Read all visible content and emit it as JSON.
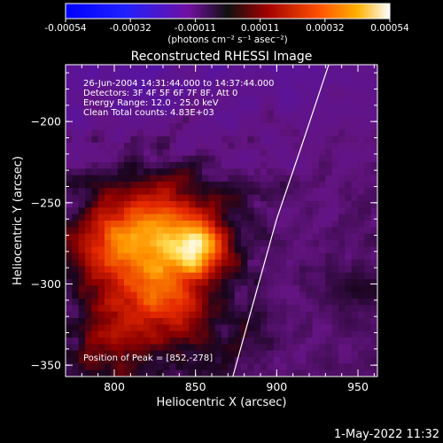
{
  "chart_data": {
    "type": "heatmap",
    "title": "Reconstructed RHESSI Image",
    "xlabel": "Heliocentric X (arcsec)",
    "ylabel": "Heliocentric Y (arcsec)",
    "xlim": [
      770,
      962
    ],
    "ylim": [
      -357,
      -165
    ],
    "x_ticks": [
      800,
      850,
      900,
      950
    ],
    "y_ticks": [
      -200,
      -250,
      -300,
      -350
    ],
    "colorbar": {
      "ticks": [
        "-0.00054",
        "-0.00032",
        "-0.00011",
        "0.00011",
        "0.00032",
        "0.00054"
      ],
      "label": "(photons cm⁻² s⁻¹ asec⁻²)",
      "range": [
        -0.00054,
        0.00054
      ]
    },
    "annotations": [
      "26-Jun-2004 14:31:44.000 to 14:37:44.000",
      "Detectors: 3F 4F 5F 6F 7F 8F, Att 0",
      "Energy Range: 12.0 - 25.0 keV",
      "Clean    Total counts: 4.83E+03"
    ],
    "peak_label": "Position of Peak = [852,-278]",
    "peak_position": [
      852,
      -278
    ],
    "peak_value": 0.00054,
    "sources": [
      {
        "x": 852,
        "y": -278,
        "sigma": 12,
        "amp": 0.00042
      },
      {
        "x": 830,
        "y": -262,
        "sigma": 20,
        "amp": 0.00025
      },
      {
        "x": 815,
        "y": -290,
        "sigma": 22,
        "amp": 0.00022
      },
      {
        "x": 835,
        "y": -315,
        "sigma": 18,
        "amp": 0.00018
      },
      {
        "x": 795,
        "y": -272,
        "sigma": 16,
        "amp": 0.00016
      },
      {
        "x": 800,
        "y": -335,
        "sigma": 16,
        "amp": 0.00012
      },
      {
        "x": 948,
        "y": -305,
        "sigma": 12,
        "amp": 0.0001
      },
      {
        "x": 888,
        "y": -330,
        "sigma": 14,
        "amp": 6e-05
      }
    ],
    "background": -5e-05,
    "noise": 8e-05,
    "limb": [
      [
        932,
        -165
      ],
      [
        917,
        -210
      ],
      [
        900,
        -260
      ],
      [
        886,
        -310
      ],
      [
        873,
        -357
      ]
    ]
  },
  "footer": {
    "date": "1-May-2022 11:32"
  }
}
